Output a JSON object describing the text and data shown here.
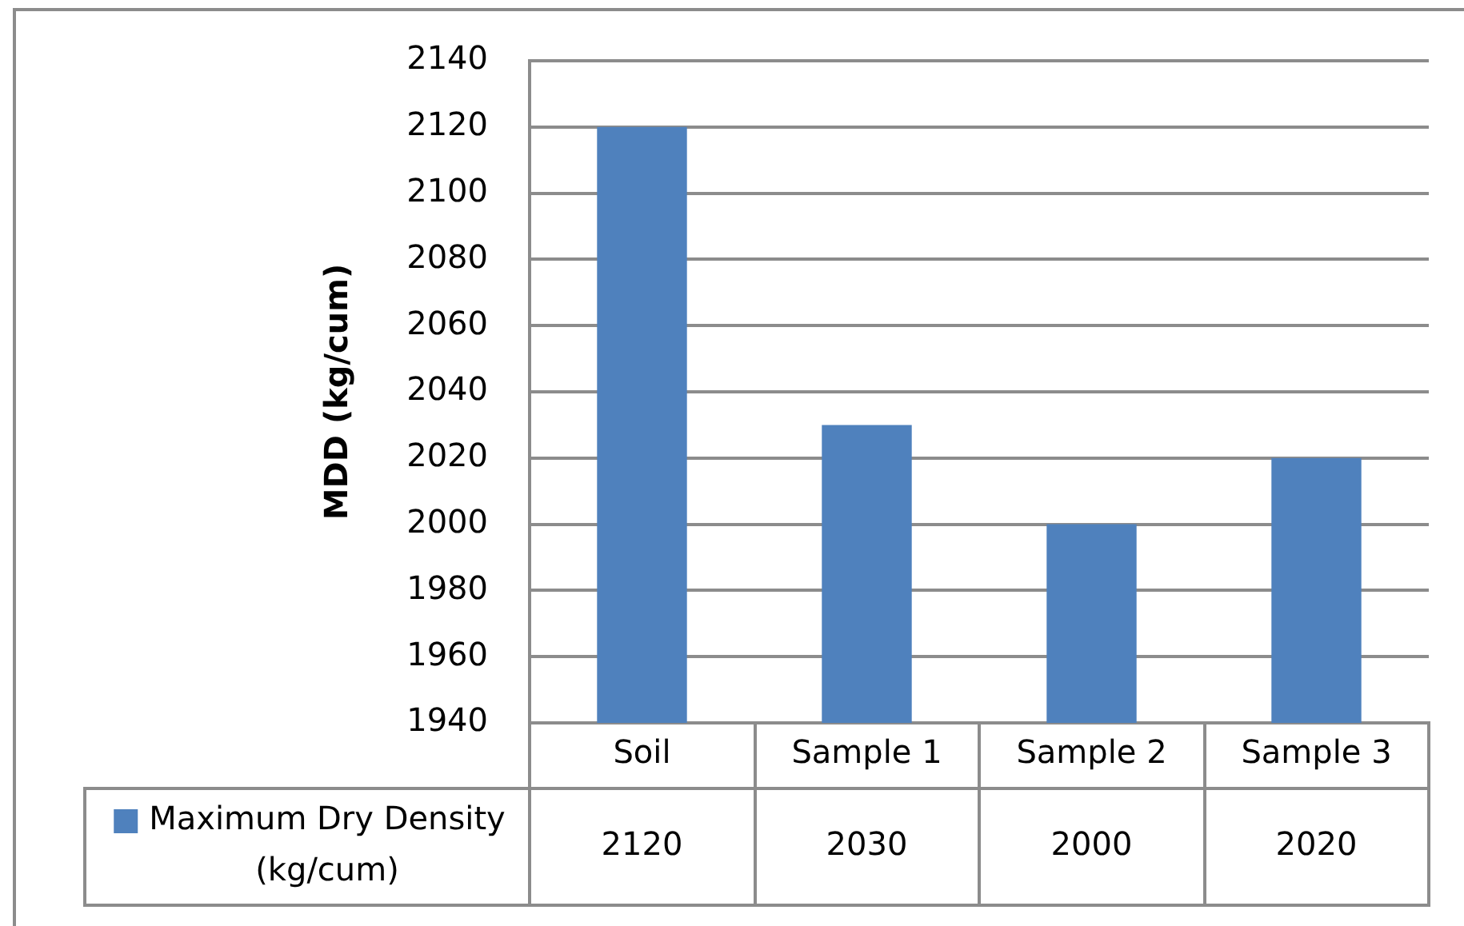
{
  "chart_data": {
    "type": "bar",
    "ylabel": "MDD (kg/cum)",
    "categories": [
      "Soil",
      "Sample 1",
      "Sample 2",
      "Sample 3"
    ],
    "series": [
      {
        "name": "Maximum Dry Density (kg/cum)",
        "color": "#4f81bd",
        "values": [
          2120,
          2030,
          2000,
          2020
        ]
      }
    ],
    "ylim": [
      1940,
      2140
    ],
    "yticks": [
      1940,
      1960,
      1980,
      2000,
      2020,
      2040,
      2060,
      2080,
      2100,
      2120,
      2140
    ],
    "grid": "y",
    "legend": "bottom",
    "data_labels": true
  }
}
